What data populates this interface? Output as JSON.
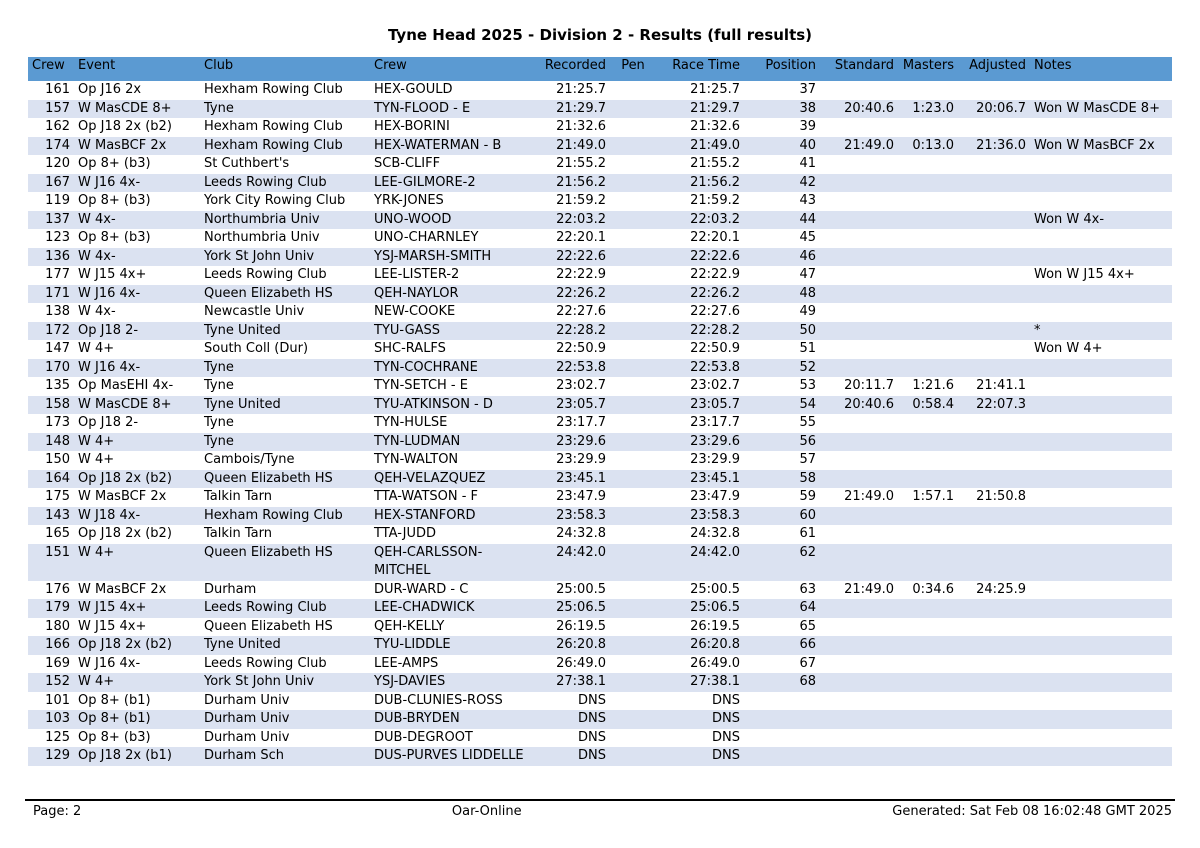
{
  "page": {
    "title": "Tyne Head 2025 - Division 2 - Results (full results)",
    "footer": {
      "page_label": "Page: 2",
      "brand": "Oar-Online",
      "generated": "Generated: Sat Feb 08 16:02:48 GMT 2025"
    }
  },
  "colors": {
    "header_bg": "#5b9ad2",
    "row_alt_bg": "#dbe2f1",
    "text": "#000000"
  },
  "results_table": {
    "columns": [
      {
        "key": "crew_number",
        "label": "Crew"
      },
      {
        "key": "event",
        "label": "Event"
      },
      {
        "key": "club",
        "label": "Club"
      },
      {
        "key": "crew_name",
        "label": "Crew"
      },
      {
        "key": "recorded",
        "label": "Recorded"
      },
      {
        "key": "pen",
        "label": "Pen"
      },
      {
        "key": "race_time",
        "label": "Race Time"
      },
      {
        "key": "position",
        "label": "Position"
      },
      {
        "key": "standard",
        "label": "Standard"
      },
      {
        "key": "masters",
        "label": "Masters"
      },
      {
        "key": "adjusted",
        "label": "Adjusted"
      },
      {
        "key": "notes",
        "label": "Notes"
      }
    ],
    "rows": [
      [
        "161",
        "Op J16 2x",
        "Hexham Rowing Club",
        "HEX-GOULD",
        "21:25.7",
        "",
        "21:25.7",
        "37",
        "",
        "",
        "",
        ""
      ],
      [
        "157",
        "W MasCDE 8+",
        "Tyne",
        "TYN-FLOOD - E",
        "21:29.7",
        "",
        "21:29.7",
        "38",
        "20:40.6",
        "1:23.0",
        "20:06.7",
        "Won W MasCDE 8+"
      ],
      [
        "162",
        "Op J18 2x (b2)",
        "Hexham Rowing Club",
        "HEX-BORINI",
        "21:32.6",
        "",
        "21:32.6",
        "39",
        "",
        "",
        "",
        ""
      ],
      [
        "174",
        "W MasBCF 2x",
        "Hexham Rowing Club",
        "HEX-WATERMAN - B",
        "21:49.0",
        "",
        "21:49.0",
        "40",
        "21:49.0",
        "0:13.0",
        "21:36.0",
        "Won W MasBCF 2x"
      ],
      [
        "120",
        "Op 8+ (b3)",
        "St Cuthbert's",
        "SCB-CLIFF",
        "21:55.2",
        "",
        "21:55.2",
        "41",
        "",
        "",
        "",
        ""
      ],
      [
        "167",
        "W J16 4x-",
        "Leeds Rowing Club",
        "LEE-GILMORE-2",
        "21:56.2",
        "",
        "21:56.2",
        "42",
        "",
        "",
        "",
        ""
      ],
      [
        "119",
        "Op 8+ (b3)",
        "York City Rowing Club",
        "YRK-JONES",
        "21:59.2",
        "",
        "21:59.2",
        "43",
        "",
        "",
        "",
        ""
      ],
      [
        "137",
        "W 4x-",
        "Northumbria Univ",
        "UNO-WOOD",
        "22:03.2",
        "",
        "22:03.2",
        "44",
        "",
        "",
        "",
        "Won W 4x-"
      ],
      [
        "123",
        "Op 8+ (b3)",
        "Northumbria Univ",
        "UNO-CHARNLEY",
        "22:20.1",
        "",
        "22:20.1",
        "45",
        "",
        "",
        "",
        ""
      ],
      [
        "136",
        "W 4x-",
        "York St John Univ",
        "YSJ-MARSH-SMITH",
        "22:22.6",
        "",
        "22:22.6",
        "46",
        "",
        "",
        "",
        ""
      ],
      [
        "177",
        "W J15 4x+",
        "Leeds Rowing Club",
        "LEE-LISTER-2",
        "22:22.9",
        "",
        "22:22.9",
        "47",
        "",
        "",
        "",
        "Won W J15 4x+"
      ],
      [
        "171",
        "W J16 4x-",
        "Queen Elizabeth HS",
        "QEH-NAYLOR",
        "22:26.2",
        "",
        "22:26.2",
        "48",
        "",
        "",
        "",
        ""
      ],
      [
        "138",
        "W 4x-",
        "Newcastle Univ",
        "NEW-COOKE",
        "22:27.6",
        "",
        "22:27.6",
        "49",
        "",
        "",
        "",
        ""
      ],
      [
        "172",
        "Op J18 2-",
        "Tyne United",
        "TYU-GASS",
        "22:28.2",
        "",
        "22:28.2",
        "50",
        "",
        "",
        "",
        "*"
      ],
      [
        "147",
        "W 4+",
        "South Coll (Dur)",
        "SHC-RALFS",
        "22:50.9",
        "",
        "22:50.9",
        "51",
        "",
        "",
        "",
        "Won W 4+"
      ],
      [
        "170",
        "W J16 4x-",
        "Tyne",
        "TYN-COCHRANE",
        "22:53.8",
        "",
        "22:53.8",
        "52",
        "",
        "",
        "",
        ""
      ],
      [
        "135",
        "Op MasEHI 4x-",
        "Tyne",
        "TYN-SETCH - E",
        "23:02.7",
        "",
        "23:02.7",
        "53",
        "20:11.7",
        "1:21.6",
        "21:41.1",
        ""
      ],
      [
        "158",
        "W MasCDE 8+",
        "Tyne United",
        "TYU-ATKINSON - D",
        "23:05.7",
        "",
        "23:05.7",
        "54",
        "20:40.6",
        "0:58.4",
        "22:07.3",
        ""
      ],
      [
        "173",
        "Op J18 2-",
        "Tyne",
        "TYN-HULSE",
        "23:17.7",
        "",
        "23:17.7",
        "55",
        "",
        "",
        "",
        ""
      ],
      [
        "148",
        "W 4+",
        "Tyne",
        "TYN-LUDMAN",
        "23:29.6",
        "",
        "23:29.6",
        "56",
        "",
        "",
        "",
        ""
      ],
      [
        "150",
        "W 4+",
        "Cambois/Tyne",
        "TYN-WALTON",
        "23:29.9",
        "",
        "23:29.9",
        "57",
        "",
        "",
        "",
        ""
      ],
      [
        "164",
        "Op J18 2x (b2)",
        "Queen Elizabeth HS",
        "QEH-VELAZQUEZ",
        "23:45.1",
        "",
        "23:45.1",
        "58",
        "",
        "",
        "",
        ""
      ],
      [
        "175",
        "W MasBCF 2x",
        "Talkin Tarn",
        "TTA-WATSON - F",
        "23:47.9",
        "",
        "23:47.9",
        "59",
        "21:49.0",
        "1:57.1",
        "21:50.8",
        ""
      ],
      [
        "143",
        "W J18 4x-",
        "Hexham Rowing Club",
        "HEX-STANFORD",
        "23:58.3",
        "",
        "23:58.3",
        "60",
        "",
        "",
        "",
        ""
      ],
      [
        "165",
        "Op J18 2x (b2)",
        "Talkin Tarn",
        "TTA-JUDD",
        "24:32.8",
        "",
        "24:32.8",
        "61",
        "",
        "",
        "",
        ""
      ],
      [
        "151",
        "W 4+",
        "Queen Elizabeth HS",
        "QEH-CARLSSON-MITCHEL",
        "24:42.0",
        "",
        "24:42.0",
        "62",
        "",
        "",
        "",
        ""
      ],
      [
        "176",
        "W MasBCF 2x",
        "Durham",
        "DUR-WARD - C",
        "25:00.5",
        "",
        "25:00.5",
        "63",
        "21:49.0",
        "0:34.6",
        "24:25.9",
        ""
      ],
      [
        "179",
        "W J15 4x+",
        "Leeds Rowing Club",
        "LEE-CHADWICK",
        "25:06.5",
        "",
        "25:06.5",
        "64",
        "",
        "",
        "",
        ""
      ],
      [
        "180",
        "W J15 4x+",
        "Queen Elizabeth HS",
        "QEH-KELLY",
        "26:19.5",
        "",
        "26:19.5",
        "65",
        "",
        "",
        "",
        ""
      ],
      [
        "166",
        "Op J18 2x (b2)",
        "Tyne United",
        "TYU-LIDDLE",
        "26:20.8",
        "",
        "26:20.8",
        "66",
        "",
        "",
        "",
        ""
      ],
      [
        "169",
        "W J16 4x-",
        "Leeds Rowing Club",
        "LEE-AMPS",
        "26:49.0",
        "",
        "26:49.0",
        "67",
        "",
        "",
        "",
        ""
      ],
      [
        "152",
        "W 4+",
        "York St John Univ",
        "YSJ-DAVIES",
        "27:38.1",
        "",
        "27:38.1",
        "68",
        "",
        "",
        "",
        ""
      ],
      [
        "101",
        "Op 8+ (b1)",
        "Durham Univ",
        "DUB-CLUNIES-ROSS",
        "DNS",
        "",
        "DNS",
        "",
        "",
        "",
        "",
        ""
      ],
      [
        "103",
        "Op 8+ (b1)",
        "Durham Univ",
        "DUB-BRYDEN",
        "DNS",
        "",
        "DNS",
        "",
        "",
        "",
        "",
        ""
      ],
      [
        "125",
        "Op 8+ (b3)",
        "Durham Univ",
        "DUB-DEGROOT",
        "DNS",
        "",
        "DNS",
        "",
        "",
        "",
        "",
        ""
      ],
      [
        "129",
        "Op J18 2x (b1)",
        "Durham Sch",
        "DUS-PURVES LIDDELLE",
        "DNS",
        "",
        "DNS",
        "",
        "",
        "",
        "",
        ""
      ]
    ]
  }
}
